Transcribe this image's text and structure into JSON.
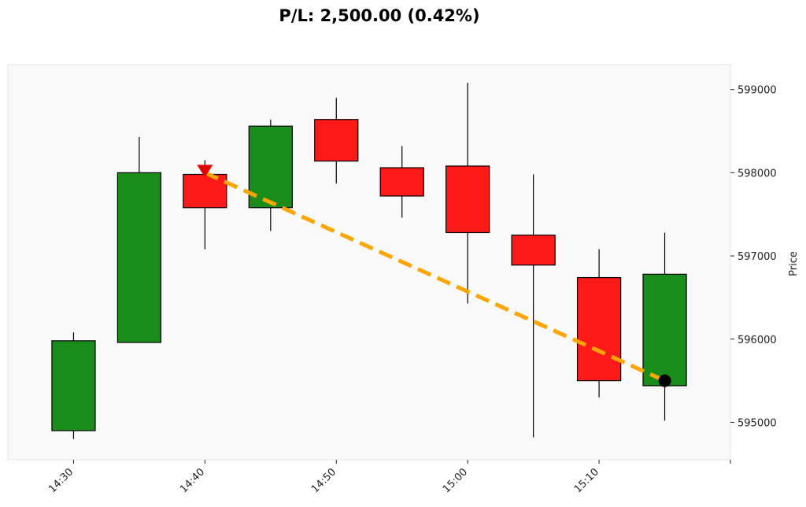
{
  "chart_data": {
    "type": "candlestick",
    "title": "P/L: 2,500.00 (0.42%)",
    "xlabel": "",
    "ylabel": "Price",
    "ylim": [
      594550,
      599300
    ],
    "xlim": [
      "14:25",
      "15:20"
    ],
    "x_ticks": [
      "14:30",
      "14:40",
      "14:50",
      "15:00",
      "15:10",
      "15:20"
    ],
    "x_tick_labels": [
      "14:30",
      "14:40",
      "14:50",
      "15:00",
      "15:10",
      ""
    ],
    "y_ticks": [
      595000,
      596000,
      597000,
      598000,
      599000
    ],
    "y_tick_labels": [
      "595000",
      "596000",
      "597000",
      "598000",
      "599000"
    ],
    "grid": false,
    "colors": {
      "up": "#1a8c1a",
      "down": "#ff1a1a",
      "trade_line": "#ffa500",
      "entry": "#e00000",
      "exit": "#000000",
      "background": "#f9f9f9"
    },
    "candles": [
      {
        "time": "14:30",
        "open": 594900,
        "high": 596080,
        "low": 594800,
        "close": 595980
      },
      {
        "time": "14:35",
        "open": 595960,
        "high": 598430,
        "low": 595960,
        "close": 598000
      },
      {
        "time": "14:40",
        "open": 597980,
        "high": 598150,
        "low": 597080,
        "close": 597580
      },
      {
        "time": "14:45",
        "open": 597580,
        "high": 598640,
        "low": 597300,
        "close": 598560
      },
      {
        "time": "14:50",
        "open": 598640,
        "high": 598900,
        "low": 597870,
        "close": 598140
      },
      {
        "time": "14:55",
        "open": 598060,
        "high": 598320,
        "low": 597460,
        "close": 597720
      },
      {
        "time": "15:00",
        "open": 598080,
        "high": 599080,
        "low": 596430,
        "close": 597280
      },
      {
        "time": "15:05",
        "open": 597250,
        "high": 597980,
        "low": 594820,
        "close": 596890
      },
      {
        "time": "15:10",
        "open": 596740,
        "high": 597080,
        "low": 595300,
        "close": 595500
      },
      {
        "time": "15:15",
        "open": 595440,
        "high": 597280,
        "low": 595020,
        "close": 596780
      }
    ],
    "trade": {
      "entry": {
        "time": "14:40",
        "price": 598000,
        "marker": "triangle-down"
      },
      "exit": {
        "time": "15:15",
        "price": 595500,
        "marker": "circle"
      }
    }
  }
}
